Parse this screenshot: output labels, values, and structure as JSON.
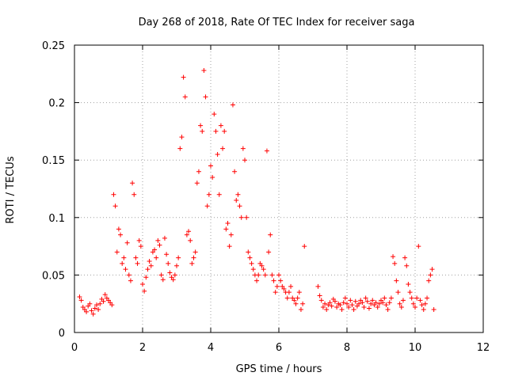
{
  "chart_data": {
    "type": "scatter",
    "title": "Day 268 of 2018, Rate Of TEC Index for receiver saga",
    "xlabel": "GPS time / hours",
    "ylabel": "ROTI / TECUs",
    "xlim": [
      0,
      12
    ],
    "ylim": [
      0,
      0.25
    ],
    "xticks": [
      0,
      2,
      4,
      6,
      8,
      10,
      12
    ],
    "yticks": [
      0,
      0.05,
      0.1,
      0.15,
      0.2,
      0.25
    ],
    "xtick_labels": [
      "0",
      "2",
      "4",
      "6",
      "8",
      "10",
      "12"
    ],
    "ytick_labels": [
      "0",
      "0.05",
      "0.1",
      "0.15",
      "0.2",
      "0.25"
    ],
    "grid": true,
    "marker": "plus",
    "color": "#ff0000",
    "series": [
      {
        "name": "ROTI",
        "points": [
          [
            0.15,
            0.031
          ],
          [
            0.2,
            0.028
          ],
          [
            0.25,
            0.022
          ],
          [
            0.3,
            0.02
          ],
          [
            0.35,
            0.018
          ],
          [
            0.4,
            0.023
          ],
          [
            0.45,
            0.025
          ],
          [
            0.5,
            0.019
          ],
          [
            0.55,
            0.016
          ],
          [
            0.6,
            0.021
          ],
          [
            0.65,
            0.024
          ],
          [
            0.7,
            0.02
          ],
          [
            0.75,
            0.025
          ],
          [
            0.8,
            0.029
          ],
          [
            0.85,
            0.027
          ],
          [
            0.9,
            0.033
          ],
          [
            0.95,
            0.03
          ],
          [
            1.0,
            0.028
          ],
          [
            1.05,
            0.026
          ],
          [
            1.1,
            0.024
          ],
          [
            1.15,
            0.12
          ],
          [
            1.2,
            0.11
          ],
          [
            1.25,
            0.07
          ],
          [
            1.3,
            0.09
          ],
          [
            1.35,
            0.085
          ],
          [
            1.4,
            0.06
          ],
          [
            1.45,
            0.065
          ],
          [
            1.5,
            0.055
          ],
          [
            1.55,
            0.078
          ],
          [
            1.6,
            0.05
          ],
          [
            1.65,
            0.045
          ],
          [
            1.7,
            0.13
          ],
          [
            1.75,
            0.12
          ],
          [
            1.8,
            0.065
          ],
          [
            1.85,
            0.06
          ],
          [
            1.9,
            0.08
          ],
          [
            1.95,
            0.075
          ],
          [
            2.0,
            0.042
          ],
          [
            2.05,
            0.036
          ],
          [
            2.1,
            0.048
          ],
          [
            2.15,
            0.055
          ],
          [
            2.2,
            0.062
          ],
          [
            2.25,
            0.058
          ],
          [
            2.3,
            0.07
          ],
          [
            2.35,
            0.072
          ],
          [
            2.4,
            0.065
          ],
          [
            2.45,
            0.08
          ],
          [
            2.5,
            0.076
          ],
          [
            2.55,
            0.05
          ],
          [
            2.6,
            0.046
          ],
          [
            2.65,
            0.082
          ],
          [
            2.7,
            0.068
          ],
          [
            2.75,
            0.06
          ],
          [
            2.8,
            0.052
          ],
          [
            2.85,
            0.048
          ],
          [
            2.9,
            0.046
          ],
          [
            2.95,
            0.05
          ],
          [
            3.0,
            0.058
          ],
          [
            3.05,
            0.065
          ],
          [
            3.1,
            0.16
          ],
          [
            3.15,
            0.17
          ],
          [
            3.2,
            0.222
          ],
          [
            3.25,
            0.205
          ],
          [
            3.3,
            0.085
          ],
          [
            3.35,
            0.088
          ],
          [
            3.4,
            0.08
          ],
          [
            3.45,
            0.06
          ],
          [
            3.5,
            0.065
          ],
          [
            3.55,
            0.07
          ],
          [
            3.6,
            0.13
          ],
          [
            3.65,
            0.14
          ],
          [
            3.7,
            0.18
          ],
          [
            3.75,
            0.175
          ],
          [
            3.8,
            0.228
          ],
          [
            3.85,
            0.205
          ],
          [
            3.9,
            0.11
          ],
          [
            3.95,
            0.12
          ],
          [
            4.0,
            0.145
          ],
          [
            4.05,
            0.135
          ],
          [
            4.1,
            0.19
          ],
          [
            4.15,
            0.175
          ],
          [
            4.2,
            0.155
          ],
          [
            4.25,
            0.12
          ],
          [
            4.3,
            0.18
          ],
          [
            4.35,
            0.16
          ],
          [
            4.4,
            0.175
          ],
          [
            4.45,
            0.09
          ],
          [
            4.5,
            0.095
          ],
          [
            4.55,
            0.075
          ],
          [
            4.6,
            0.085
          ],
          [
            4.65,
            0.198
          ],
          [
            4.7,
            0.14
          ],
          [
            4.75,
            0.115
          ],
          [
            4.8,
            0.12
          ],
          [
            4.85,
            0.11
          ],
          [
            4.9,
            0.1
          ],
          [
            4.95,
            0.16
          ],
          [
            5.0,
            0.15
          ],
          [
            5.05,
            0.1
          ],
          [
            5.1,
            0.07
          ],
          [
            5.15,
            0.065
          ],
          [
            5.2,
            0.06
          ],
          [
            5.25,
            0.055
          ],
          [
            5.3,
            0.05
          ],
          [
            5.35,
            0.045
          ],
          [
            5.4,
            0.05
          ],
          [
            5.45,
            0.06
          ],
          [
            5.5,
            0.058
          ],
          [
            5.55,
            0.055
          ],
          [
            5.6,
            0.05
          ],
          [
            5.65,
            0.158
          ],
          [
            5.7,
            0.07
          ],
          [
            5.75,
            0.085
          ],
          [
            5.8,
            0.05
          ],
          [
            5.85,
            0.045
          ],
          [
            5.9,
            0.035
          ],
          [
            5.95,
            0.04
          ],
          [
            6.0,
            0.05
          ],
          [
            6.05,
            0.045
          ],
          [
            6.1,
            0.04
          ],
          [
            6.15,
            0.038
          ],
          [
            6.2,
            0.035
          ],
          [
            6.25,
            0.03
          ],
          [
            6.3,
            0.035
          ],
          [
            6.35,
            0.04
          ],
          [
            6.4,
            0.03
          ],
          [
            6.45,
            0.028
          ],
          [
            6.5,
            0.025
          ],
          [
            6.55,
            0.03
          ],
          [
            6.6,
            0.035
          ],
          [
            6.65,
            0.02
          ],
          [
            6.7,
            0.025
          ],
          [
            6.75,
            0.075
          ],
          [
            7.15,
            0.04
          ],
          [
            7.2,
            0.032
          ],
          [
            7.25,
            0.028
          ],
          [
            7.3,
            0.022
          ],
          [
            7.35,
            0.025
          ],
          [
            7.4,
            0.02
          ],
          [
            7.45,
            0.024
          ],
          [
            7.5,
            0.026
          ],
          [
            7.55,
            0.023
          ],
          [
            7.6,
            0.029
          ],
          [
            7.65,
            0.027
          ],
          [
            7.7,
            0.022
          ],
          [
            7.75,
            0.025
          ],
          [
            7.8,
            0.024
          ],
          [
            7.85,
            0.02
          ],
          [
            7.9,
            0.026
          ],
          [
            7.95,
            0.03
          ],
          [
            8.0,
            0.025
          ],
          [
            8.05,
            0.022
          ],
          [
            8.1,
            0.028
          ],
          [
            8.15,
            0.024
          ],
          [
            8.2,
            0.02
          ],
          [
            8.25,
            0.027
          ],
          [
            8.3,
            0.023
          ],
          [
            8.35,
            0.025
          ],
          [
            8.4,
            0.028
          ],
          [
            8.45,
            0.026
          ],
          [
            8.5,
            0.022
          ],
          [
            8.55,
            0.03
          ],
          [
            8.6,
            0.027
          ],
          [
            8.65,
            0.021
          ],
          [
            8.7,
            0.025
          ],
          [
            8.75,
            0.028
          ],
          [
            8.8,
            0.024
          ],
          [
            8.85,
            0.026
          ],
          [
            8.9,
            0.022
          ],
          [
            8.95,
            0.025
          ],
          [
            9.0,
            0.028
          ],
          [
            9.05,
            0.026
          ],
          [
            9.1,
            0.03
          ],
          [
            9.15,
            0.024
          ],
          [
            9.2,
            0.02
          ],
          [
            9.25,
            0.026
          ],
          [
            9.3,
            0.03
          ],
          [
            9.35,
            0.066
          ],
          [
            9.4,
            0.06
          ],
          [
            9.45,
            0.045
          ],
          [
            9.5,
            0.035
          ],
          [
            9.55,
            0.025
          ],
          [
            9.6,
            0.022
          ],
          [
            9.65,
            0.028
          ],
          [
            9.7,
            0.065
          ],
          [
            9.75,
            0.058
          ],
          [
            9.8,
            0.042
          ],
          [
            9.85,
            0.035
          ],
          [
            9.9,
            0.03
          ],
          [
            9.95,
            0.025
          ],
          [
            10.0,
            0.022
          ],
          [
            10.05,
            0.03
          ],
          [
            10.1,
            0.075
          ],
          [
            10.15,
            0.028
          ],
          [
            10.2,
            0.024
          ],
          [
            10.25,
            0.02
          ],
          [
            10.3,
            0.025
          ],
          [
            10.35,
            0.03
          ],
          [
            10.4,
            0.045
          ],
          [
            10.45,
            0.05
          ],
          [
            10.5,
            0.055
          ],
          [
            10.55,
            0.02
          ]
        ]
      }
    ]
  }
}
